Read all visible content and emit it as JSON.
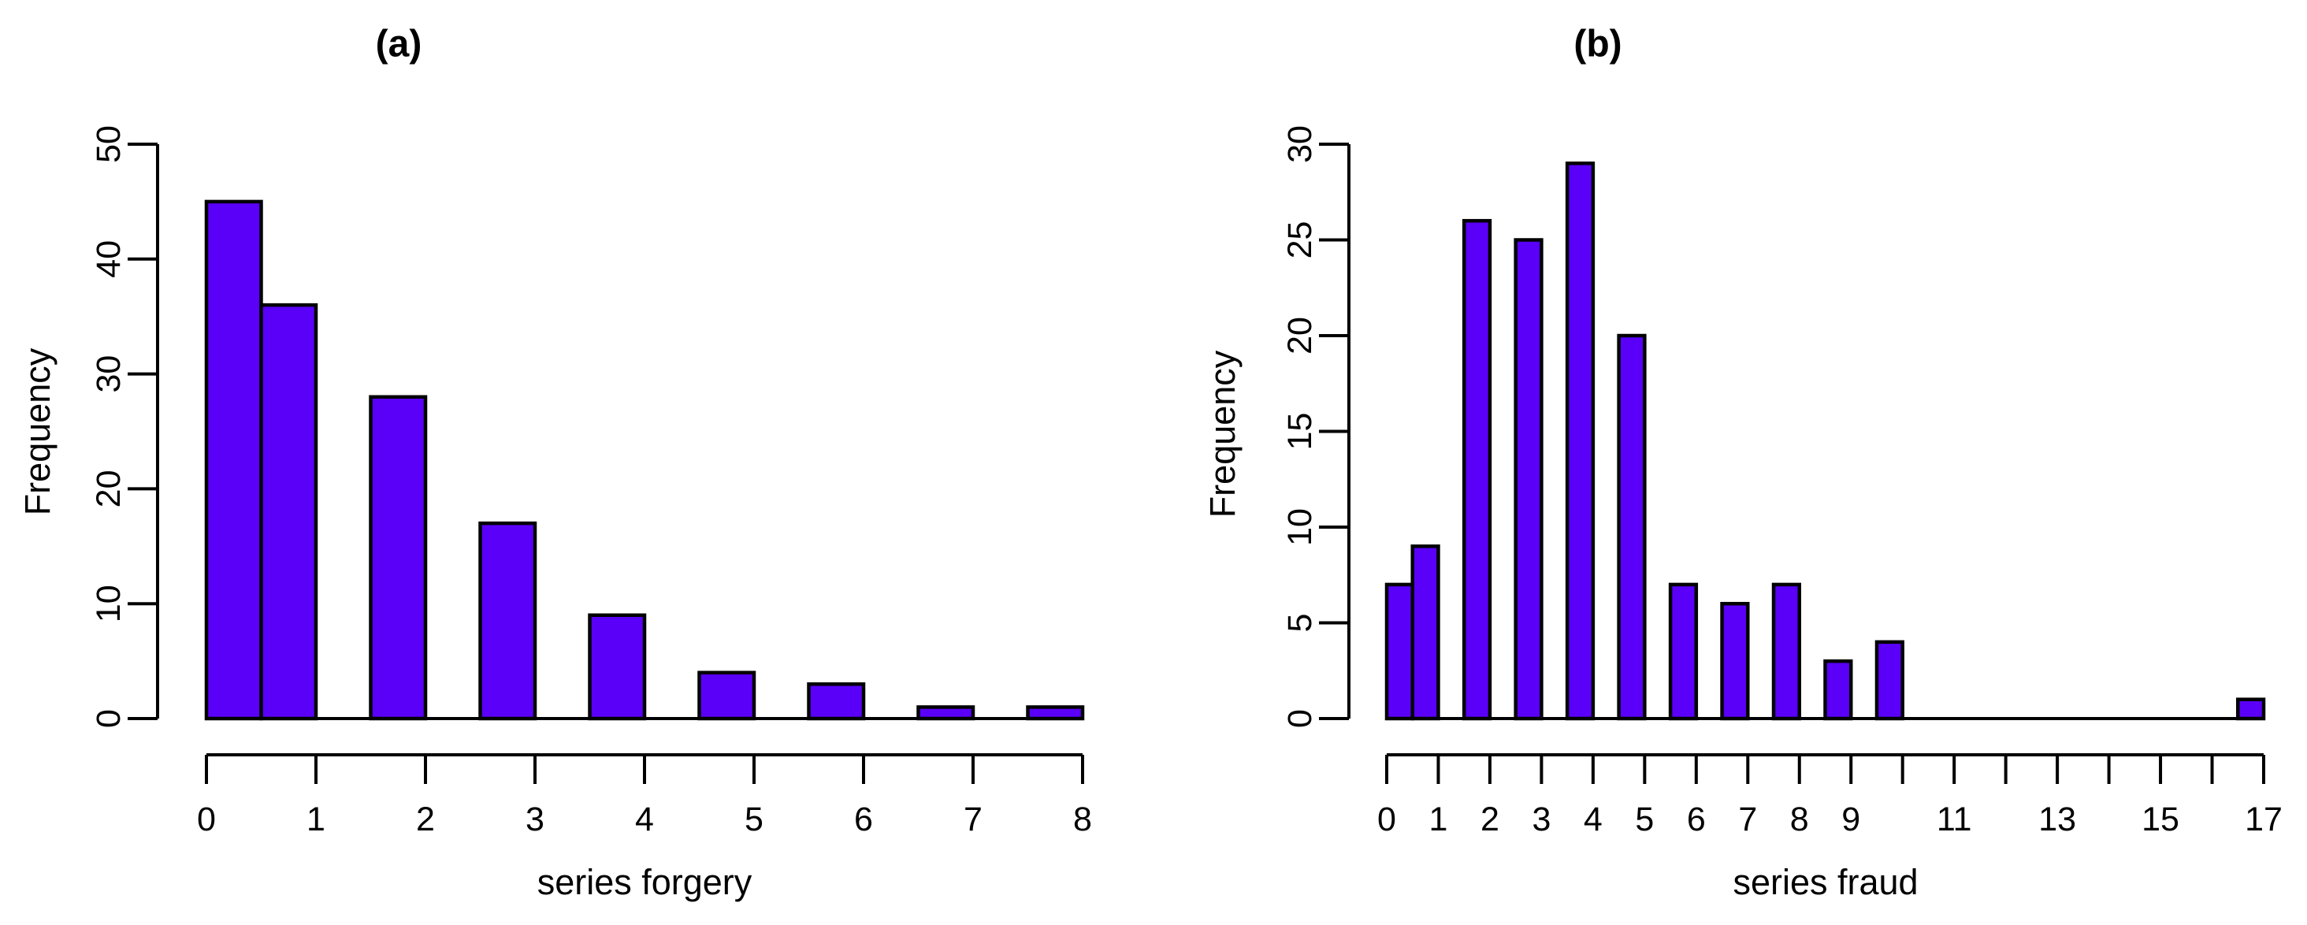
{
  "page": {
    "background_color": "#ffffff",
    "text_color": "#000000"
  },
  "chart_data": [
    {
      "id": "a",
      "type": "bar",
      "subtype": "histogram",
      "title": "(a)",
      "xlabel": "series forgery",
      "ylabel": "Frequency",
      "bar_fill_color": "#5A00F8",
      "bar_stroke_color": "#000000",
      "axis_color": "#000000",
      "grid": false,
      "legend": false,
      "xlim": [
        0,
        8
      ],
      "ylim": [
        0,
        50
      ],
      "yticks": [
        0,
        10,
        20,
        30,
        40,
        50
      ],
      "xticks": [
        0,
        1,
        2,
        3,
        4,
        5,
        6,
        7,
        8
      ],
      "xtick_labels": [
        "0",
        "1",
        "2",
        "3",
        "4",
        "5",
        "6",
        "7",
        "8"
      ],
      "bin_width": 0.5,
      "values": [
        0,
        1,
        2,
        3,
        4,
        5,
        6,
        7,
        8
      ],
      "frequencies": [
        45,
        36,
        28,
        17,
        9,
        4,
        3,
        1,
        1
      ],
      "bins": [
        {
          "value": 0,
          "range": [
            0,
            0.5
          ],
          "frequency": 45
        },
        {
          "value": 1,
          "range": [
            0.5,
            1
          ],
          "frequency": 36
        },
        {
          "value": 2,
          "range": [
            1.5,
            2
          ],
          "frequency": 28
        },
        {
          "value": 3,
          "range": [
            2.5,
            3
          ],
          "frequency": 17
        },
        {
          "value": 4,
          "range": [
            3.5,
            4
          ],
          "frequency": 9
        },
        {
          "value": 5,
          "range": [
            4.5,
            5
          ],
          "frequency": 4
        },
        {
          "value": 6,
          "range": [
            5.5,
            6
          ],
          "frequency": 3
        },
        {
          "value": 7,
          "range": [
            6.5,
            7
          ],
          "frequency": 1
        },
        {
          "value": 8,
          "range": [
            7.5,
            8
          ],
          "frequency": 1
        }
      ]
    },
    {
      "id": "b",
      "type": "bar",
      "subtype": "histogram",
      "title": "(b)",
      "xlabel": "series fraud",
      "ylabel": "Frequency",
      "bar_fill_color": "#5A00F8",
      "bar_stroke_color": "#000000",
      "axis_color": "#000000",
      "grid": false,
      "legend": false,
      "xlim": [
        0,
        17
      ],
      "ylim": [
        0,
        30
      ],
      "yticks": [
        0,
        5,
        10,
        15,
        20,
        25,
        30
      ],
      "xticks": [
        0,
        1,
        2,
        3,
        4,
        5,
        6,
        7,
        8,
        9,
        10,
        11,
        12,
        13,
        14,
        15,
        16,
        17
      ],
      "xtick_labels": [
        "0",
        "1",
        "2",
        "3",
        "4",
        "5",
        "6",
        "7",
        "8",
        "9",
        "",
        "11",
        "",
        "13",
        "",
        "15",
        "",
        "17"
      ],
      "bin_width": 0.5,
      "values": [
        0,
        1,
        2,
        3,
        4,
        5,
        6,
        7,
        8,
        9,
        10,
        17
      ],
      "frequencies": [
        7,
        9,
        26,
        25,
        29,
        20,
        7,
        6,
        7,
        3,
        4,
        1
      ],
      "bins": [
        {
          "value": 0,
          "range": [
            0,
            0.5
          ],
          "frequency": 7
        },
        {
          "value": 1,
          "range": [
            0.5,
            1
          ],
          "frequency": 9
        },
        {
          "value": 2,
          "range": [
            1.5,
            2
          ],
          "frequency": 26
        },
        {
          "value": 3,
          "range": [
            2.5,
            3
          ],
          "frequency": 25
        },
        {
          "value": 4,
          "range": [
            3.5,
            4
          ],
          "frequency": 29
        },
        {
          "value": 5,
          "range": [
            4.5,
            5
          ],
          "frequency": 20
        },
        {
          "value": 6,
          "range": [
            5.5,
            6
          ],
          "frequency": 7
        },
        {
          "value": 7,
          "range": [
            6.5,
            7
          ],
          "frequency": 6
        },
        {
          "value": 8,
          "range": [
            7.5,
            8
          ],
          "frequency": 7
        },
        {
          "value": 9,
          "range": [
            8.5,
            9
          ],
          "frequency": 3
        },
        {
          "value": 10,
          "range": [
            9.5,
            10
          ],
          "frequency": 4
        },
        {
          "value": 17,
          "range": [
            16.5,
            17
          ],
          "frequency": 1
        }
      ]
    }
  ]
}
